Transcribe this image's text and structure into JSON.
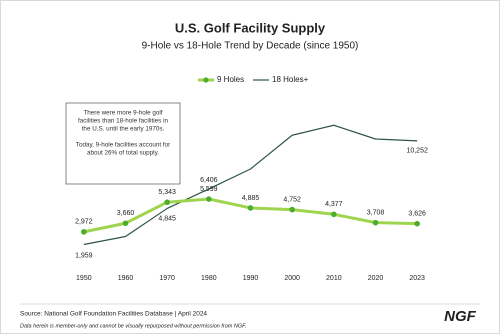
{
  "chart_data": {
    "type": "line",
    "title": "U.S. Golf Facility Supply",
    "subtitle": "9-Hole vs 18-Hole Trend by Decade (since 1950)",
    "categories": [
      "1950",
      "1960",
      "1970",
      "1980",
      "1990",
      "2000",
      "2010",
      "2020",
      "2023"
    ],
    "series": [
      {
        "name": "9 Holes",
        "color": "#9fd44f",
        "marker_color": "#4cae2c",
        "values": [
          2972,
          3660,
          5343,
          5599,
          4885,
          4752,
          4377,
          3708,
          3626
        ],
        "value_labels": [
          "2,972",
          "3,660",
          "5,343",
          "5,599",
          "4,885",
          "4,752",
          "4,377",
          "3,708",
          "3,626"
        ]
      },
      {
        "name": "18 Holes+",
        "color": "#2f5540",
        "values": [
          1959,
          2600,
          4845,
          6406,
          8000,
          10700,
          11500,
          10400,
          10252
        ],
        "value_labels": [
          "1,959",
          null,
          "4,845",
          "6,406",
          null,
          null,
          null,
          null,
          "10,252"
        ]
      }
    ],
    "ylim": [
      0,
      12000
    ],
    "annotation": [
      "There were more 9-hole golf",
      "facilities than 18-hole facilities in",
      "the U.S. until the early 1970s.",
      "Today, 9-hole facilities account for",
      "about 26% of total supply."
    ],
    "source": "Source: National Golf Foundation Facilities Database | April 2024",
    "disclaimer": "Data herein is member-only and cannot be visually repurposed without permission from NGF.",
    "logo": "NGF"
  }
}
